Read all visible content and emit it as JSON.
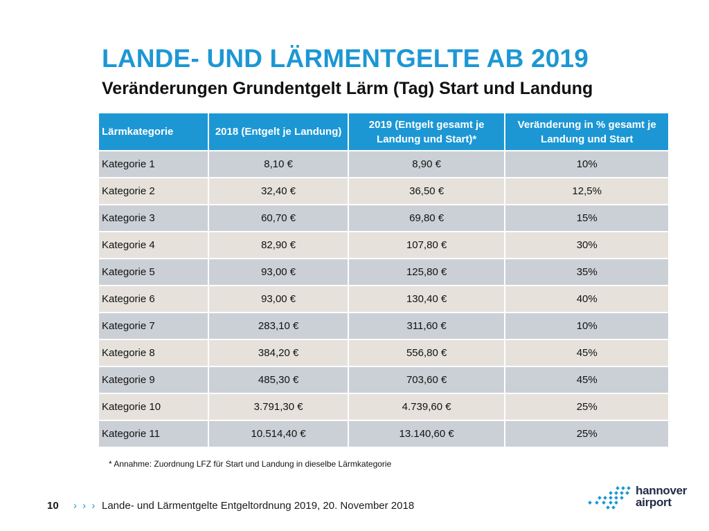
{
  "title": "LANDE- UND LÄRMENTGELTE AB 2019",
  "subtitle": "Veränderungen Grundentgelt Lärm (Tag) Start und Landung",
  "table": {
    "headers": [
      "Lärmkategorie",
      "2018 (Entgelt je Landung)",
      "2019 (Entgelt gesamt je Landung und Start)*",
      "Veränderung in % gesamt je Landung und Start"
    ],
    "rows": [
      [
        "Kategorie 1",
        "8,10 €",
        "8,90 €",
        "10%"
      ],
      [
        "Kategorie 2",
        "32,40 €",
        "36,50 €",
        "12,5%"
      ],
      [
        "Kategorie 3",
        "60,70 €",
        "69,80 €",
        "15%"
      ],
      [
        "Kategorie 4",
        "82,90 €",
        "107,80 €",
        "30%"
      ],
      [
        "Kategorie 5",
        "93,00 €",
        "125,80 €",
        "35%"
      ],
      [
        "Kategorie 6",
        "93,00 €",
        "130,40 €",
        "40%"
      ],
      [
        "Kategorie 7",
        "283,10 €",
        "311,60 €",
        "10%"
      ],
      [
        "Kategorie 8",
        "384,20 €",
        "556,80 €",
        "45%"
      ],
      [
        "Kategorie 9",
        "485,30 €",
        "703,60 €",
        "45%"
      ],
      [
        "Kategorie 10",
        "3.791,30 €",
        "4.739,60 €",
        "25%"
      ],
      [
        "Kategorie 11",
        "10.514,40 €",
        "13.140,60 €",
        "25%"
      ]
    ]
  },
  "footnote": "* Annahme: Zuordnung LFZ für Start und Landung in dieselbe Lärmkategorie",
  "footer": {
    "page_number": "10",
    "chevrons": "› › ›",
    "text": "Lande- und Lärmentgelte Entgeltordnung 2019, 20. November 2018"
  },
  "logo": {
    "line1": "hannover",
    "line2": "airport",
    "icon": "airport-dots-icon"
  },
  "colors": {
    "accent": "#1c97d4",
    "row_odd": "#cbd0d6",
    "row_even": "#e6e2db",
    "logo_text": "#1f2a44"
  }
}
